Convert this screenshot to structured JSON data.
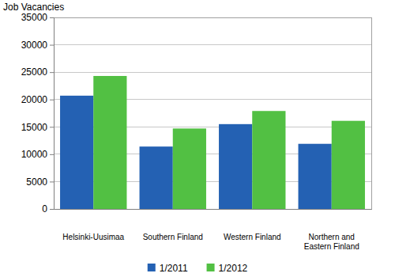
{
  "chart_data": {
    "type": "bar",
    "ylabel": "Job Vacancies",
    "categories": [
      "Helsinki-Uusimaa",
      "Southern Finland",
      "Western Finland",
      "Northern and Eastern Finland"
    ],
    "series": [
      {
        "name": "1/2011",
        "color": "#2461b3",
        "values": [
          20700,
          11400,
          15500,
          11900
        ]
      },
      {
        "name": "1/2012",
        "color": "#52c043",
        "values": [
          24300,
          14700,
          17900,
          16100
        ]
      }
    ],
    "ylim": [
      0,
      35000
    ],
    "yticks": [
      0,
      5000,
      10000,
      15000,
      20000,
      25000,
      30000,
      35000
    ],
    "grid": true,
    "legend": "bottom"
  }
}
